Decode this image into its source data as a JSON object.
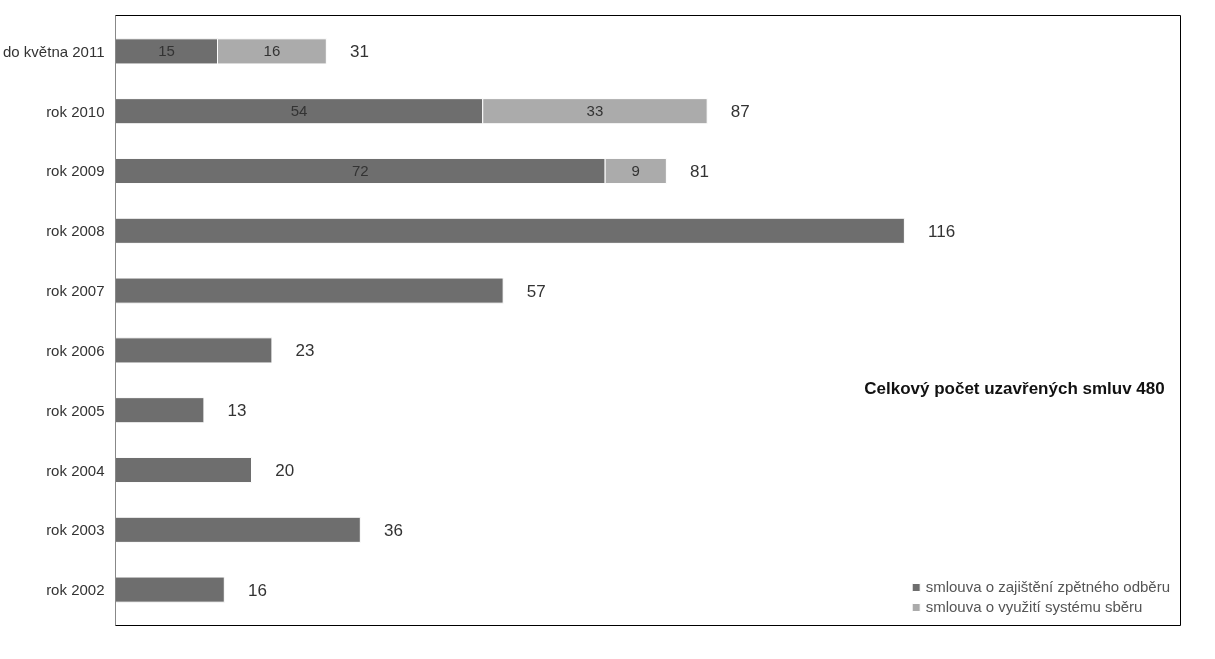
{
  "chart_data": {
    "type": "bar",
    "orientation": "horizontal",
    "stacked": true,
    "title": "Celkový počet uzavřených smluv 480",
    "categories": [
      "do května 2011",
      "rok 2010",
      "rok 2009",
      "rok 2008",
      "rok 2007",
      "rok 2006",
      "rok 2005",
      "rok 2004",
      "rok 2003",
      "rok 2002"
    ],
    "series": [
      {
        "name": "smlouva o zajištění zpětného odběru",
        "color": "#6e6e6e",
        "values": [
          15,
          54,
          72,
          116,
          57,
          23,
          13,
          20,
          36,
          16
        ],
        "value_labels": [
          "15",
          "54",
          "72",
          null,
          null,
          null,
          null,
          null,
          null,
          null
        ]
      },
      {
        "name": "smlouva o využití systému sběru",
        "color": "#ababab",
        "values": [
          16,
          33,
          9,
          null,
          null,
          null,
          null,
          null,
          null,
          null
        ],
        "value_labels": [
          "16",
          "33",
          "9",
          null,
          null,
          null,
          null,
          null,
          null,
          null
        ]
      }
    ],
    "totals": [
      "31",
      "87",
      "81",
      "116",
      "57",
      "23",
      "13",
      "20",
      "36",
      "16"
    ],
    "legend": "bottom right",
    "grid": false
  }
}
